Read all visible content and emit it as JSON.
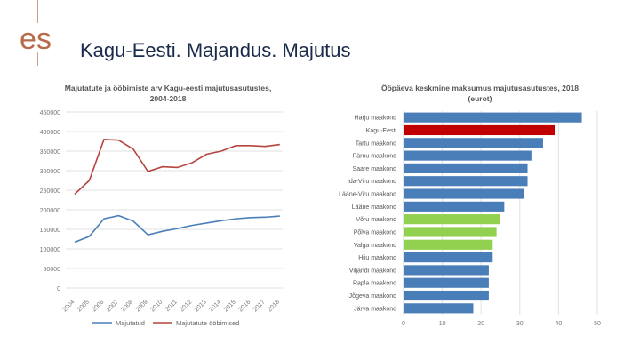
{
  "header": {
    "logo": "es",
    "title": "Kagu-Eesti. Majandus. Majutus"
  },
  "chart_data": [
    {
      "type": "line",
      "title_line1": "Majutatute ja ööbimiste arv Kagu-eesti majutusasutustes,",
      "title_line2": "2004-2018",
      "x": [
        "2004",
        "2005",
        "2006",
        "2007",
        "2008",
        "2009",
        "2010",
        "2011",
        "2012",
        "2013",
        "2014",
        "2015",
        "2016",
        "2017",
        "2018"
      ],
      "ylim": [
        0,
        450000
      ],
      "yticks": [
        0,
        50000,
        100000,
        150000,
        200000,
        250000,
        300000,
        350000,
        400000,
        450000
      ],
      "grid": true,
      "legend_position": "bottom",
      "series": [
        {
          "name": "Majutatud",
          "color": "#4a7eb8",
          "values": [
            117000,
            132000,
            177000,
            185000,
            171000,
            136000,
            145000,
            152000,
            160000,
            166000,
            172000,
            177000,
            180000,
            181000,
            184000
          ]
        },
        {
          "name": "Majutatute ööbimised",
          "color": "#b5443e",
          "values": [
            240000,
            275000,
            380000,
            378000,
            355000,
            298000,
            310000,
            308000,
            320000,
            342000,
            350000,
            364000,
            364000,
            362000,
            367000
          ]
        }
      ]
    },
    {
      "type": "bar",
      "orientation": "horizontal",
      "title_line1": "Ööpäeva keskmine maksumus majutusasutustes, 2018",
      "title_line2": "(eurot)",
      "xlim": [
        0,
        50
      ],
      "xticks": [
        0,
        10,
        20,
        30,
        40,
        50
      ],
      "grid": true,
      "categories": [
        "Harju maakond",
        "Kagu-Eesti",
        "Tartu maakond",
        "Pärnu maakond",
        "Saare maakond",
        "Ida-Viru maakond",
        "Lääne-Viru maakond",
        "Lääne maakond",
        "Võru maakond",
        "Põlva maakond",
        "Valga maakond",
        "Hiiu maakond",
        "Viljandi maakond",
        "Rapla maakond",
        "Jõgeva maakond",
        "Järva maakond"
      ],
      "values": [
        46,
        39,
        36,
        33,
        32,
        32,
        31,
        26,
        25,
        24,
        23,
        23,
        22,
        22,
        22,
        18
      ],
      "colors": [
        "#4a7eb8",
        "#c00000",
        "#4a7eb8",
        "#4a7eb8",
        "#4a7eb8",
        "#4a7eb8",
        "#4a7eb8",
        "#4a7eb8",
        "#92d050",
        "#92d050",
        "#92d050",
        "#4a7eb8",
        "#4a7eb8",
        "#4a7eb8",
        "#4a7eb8",
        "#4a7eb8"
      ]
    }
  ]
}
